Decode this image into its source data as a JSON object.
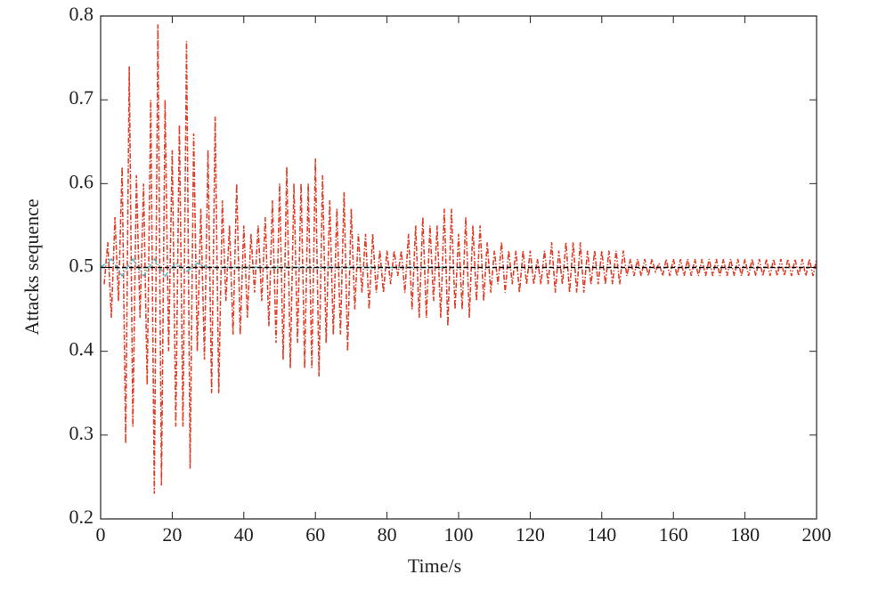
{
  "chart_data": {
    "type": "line",
    "xlabel": "Time/s",
    "ylabel": "Attacks sequence",
    "xlim": [
      0,
      200
    ],
    "ylim": [
      0.2,
      0.8
    ],
    "xticks": [
      0,
      20,
      40,
      60,
      80,
      100,
      120,
      140,
      160,
      180,
      200
    ],
    "yticks": [
      0.2,
      0.3,
      0.4,
      0.5,
      0.6,
      0.7,
      0.8
    ],
    "series": [
      {
        "color": "#e0402a",
        "dash": "dashdot",
        "x": [
          1,
          2,
          3,
          4,
          5,
          6,
          7,
          8,
          9,
          10,
          11,
          12,
          13,
          14,
          15,
          16,
          17,
          18,
          19,
          20,
          21,
          22,
          23,
          24,
          25,
          26,
          27,
          28,
          29,
          30,
          31,
          32,
          33,
          34,
          35,
          36,
          37,
          38,
          39,
          40,
          41,
          42,
          43,
          44,
          45,
          46,
          47,
          48,
          49,
          50,
          51,
          52,
          53,
          54,
          55,
          56,
          57,
          58,
          59,
          60,
          61,
          62,
          63,
          64,
          65,
          66,
          67,
          68,
          69,
          70,
          71,
          72,
          73,
          74,
          75,
          76,
          77,
          78,
          79,
          80,
          81,
          82,
          83,
          84,
          85,
          86,
          87,
          88,
          89,
          90,
          91,
          92,
          93,
          94,
          95,
          96,
          97,
          98,
          99,
          100,
          101,
          102,
          103,
          104,
          105,
          106,
          107,
          108,
          109,
          110,
          111,
          112,
          113,
          114,
          115,
          116,
          117,
          118,
          119,
          120,
          121,
          122,
          123,
          124,
          125,
          126,
          127,
          128,
          129,
          130,
          131,
          132,
          133,
          134,
          135,
          136,
          137,
          138,
          139,
          140,
          141,
          142,
          143,
          144,
          145,
          146,
          147,
          148,
          149,
          150,
          151,
          152,
          153,
          154,
          155,
          156,
          157,
          158,
          159,
          160,
          161,
          162,
          163,
          164,
          165,
          166,
          167,
          168,
          169,
          170,
          171,
          172,
          173,
          174,
          175,
          176,
          177,
          178,
          179,
          180,
          181,
          182,
          183,
          184,
          185,
          186,
          187,
          188,
          189,
          190,
          191,
          192,
          193,
          194,
          195,
          196,
          197,
          198,
          199,
          200
        ],
        "values": [
          0.48,
          0.53,
          0.44,
          0.56,
          0.46,
          0.62,
          0.29,
          0.74,
          0.31,
          0.61,
          0.44,
          0.6,
          0.36,
          0.7,
          0.23,
          0.79,
          0.24,
          0.7,
          0.4,
          0.64,
          0.31,
          0.67,
          0.31,
          0.77,
          0.26,
          0.66,
          0.4,
          0.57,
          0.39,
          0.64,
          0.35,
          0.68,
          0.35,
          0.58,
          0.46,
          0.55,
          0.42,
          0.6,
          0.42,
          0.55,
          0.44,
          0.54,
          0.47,
          0.55,
          0.46,
          0.56,
          0.43,
          0.58,
          0.41,
          0.6,
          0.39,
          0.62,
          0.38,
          0.6,
          0.41,
          0.6,
          0.38,
          0.6,
          0.38,
          0.63,
          0.37,
          0.61,
          0.41,
          0.58,
          0.42,
          0.57,
          0.42,
          0.59,
          0.4,
          0.57,
          0.45,
          0.54,
          0.47,
          0.54,
          0.45,
          0.54,
          0.47,
          0.52,
          0.47,
          0.52,
          0.48,
          0.52,
          0.49,
          0.52,
          0.47,
          0.54,
          0.45,
          0.55,
          0.44,
          0.56,
          0.44,
          0.55,
          0.46,
          0.55,
          0.44,
          0.57,
          0.43,
          0.57,
          0.45,
          0.54,
          0.45,
          0.56,
          0.44,
          0.55,
          0.46,
          0.55,
          0.46,
          0.53,
          0.47,
          0.52,
          0.48,
          0.53,
          0.47,
          0.52,
          0.48,
          0.52,
          0.47,
          0.52,
          0.48,
          0.52,
          0.48,
          0.51,
          0.48,
          0.52,
          0.48,
          0.53,
          0.47,
          0.52,
          0.48,
          0.53,
          0.47,
          0.53,
          0.47,
          0.53,
          0.47,
          0.52,
          0.48,
          0.52,
          0.48,
          0.52,
          0.48,
          0.52,
          0.48,
          0.52,
          0.48,
          0.52,
          0.49,
          0.51,
          0.49,
          0.51,
          0.49,
          0.51,
          0.49,
          0.51,
          0.495,
          0.505,
          0.49,
          0.51,
          0.49,
          0.51,
          0.49,
          0.51,
          0.49,
          0.51,
          0.49,
          0.51,
          0.49,
          0.51,
          0.49,
          0.51,
          0.49,
          0.51,
          0.49,
          0.51,
          0.49,
          0.51,
          0.49,
          0.51,
          0.49,
          0.51,
          0.49,
          0.51,
          0.49,
          0.51,
          0.49,
          0.51,
          0.49,
          0.51,
          0.49,
          0.51,
          0.49,
          0.51,
          0.49,
          0.51,
          0.49,
          0.51,
          0.49,
          0.51,
          0.49,
          0.51
        ]
      },
      {
        "color": "#4fb8c0",
        "dash": "dashdot",
        "x": [
          0,
          3,
          6,
          9,
          12,
          15,
          18,
          21,
          24,
          27,
          30,
          40,
          50,
          60,
          80,
          100
        ],
        "values": [
          0.5,
          0.51,
          0.49,
          0.51,
          0.49,
          0.51,
          0.49,
          0.505,
          0.495,
          0.505,
          0.5,
          0.5,
          0.5,
          0.5,
          0.5,
          0.5
        ]
      },
      {
        "color": "#000000",
        "dash": "dashed",
        "x": [
          0,
          200
        ],
        "values": [
          0.5,
          0.5
        ]
      }
    ]
  }
}
